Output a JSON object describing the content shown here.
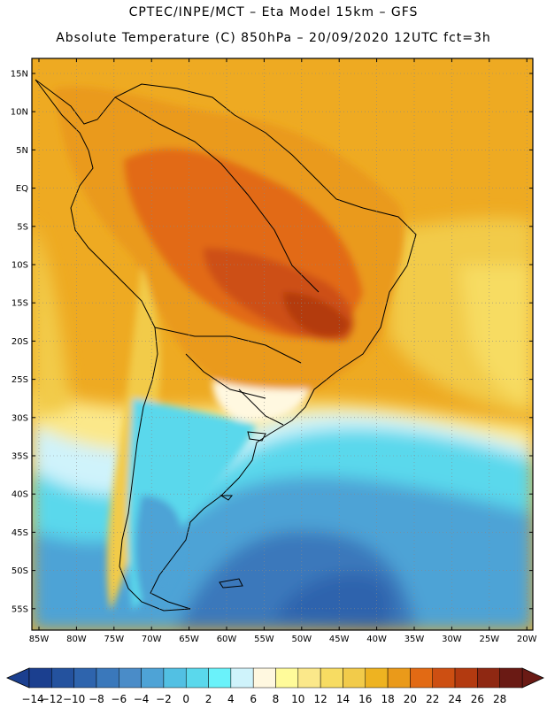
{
  "title": {
    "line1": "CPTEC/INPE/MCT –  Eta Model 15km – GFS",
    "line2": "Absolute Temperature (C) 850hPa – 20/09/2020 12UTC fct=3h"
  },
  "map": {
    "lat_labels": [
      "15N",
      "10N",
      "5N",
      "EQ",
      "5S",
      "10S",
      "15S",
      "20S",
      "25S",
      "30S",
      "35S",
      "40S",
      "45S",
      "50S",
      "55S"
    ],
    "lon_labels": [
      "85W",
      "80W",
      "75W",
      "70W",
      "65W",
      "60W",
      "55W",
      "50W",
      "45W",
      "40W",
      "35W",
      "30W",
      "25W",
      "20W"
    ],
    "grid": "dotted"
  },
  "colorbar": {
    "labels": [
      "-14",
      "-12",
      "-10",
      "-8",
      "-6",
      "-4",
      "-2",
      "0",
      "2",
      "4",
      "6",
      "8",
      "10",
      "12",
      "14",
      "16",
      "18",
      "20",
      "22",
      "24",
      "26",
      "28"
    ],
    "colors": [
      "#1b3f8f",
      "#24529e",
      "#2e64ad",
      "#3a78bb",
      "#4a8cc8",
      "#4ea3d6",
      "#52c0e3",
      "#5ad8ec",
      "#6af2fa",
      "#cff3fb",
      "#fff8e0",
      "#fffb9a",
      "#fbe88a",
      "#f7dc62",
      "#f2cb4a",
      "#eeb321",
      "#ea9a1a",
      "#e26a14",
      "#cd4f12",
      "#b33a10",
      "#8f2812",
      "#6a1a14"
    ]
  }
}
